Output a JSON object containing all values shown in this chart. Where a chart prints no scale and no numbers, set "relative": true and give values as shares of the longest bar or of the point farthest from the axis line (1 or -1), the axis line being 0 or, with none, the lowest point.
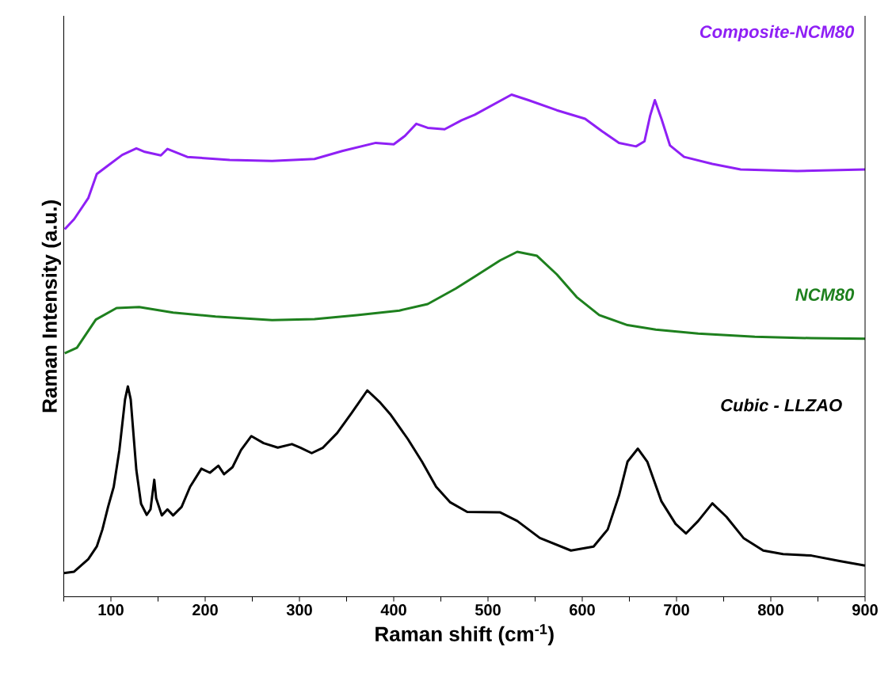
{
  "chart_data": {
    "type": "line",
    "relative": true,
    "xlabel": "Raman shift (cm$^{-1}$)",
    "ylabel": "Raman Intensity (a.u.)",
    "xlim": [
      50,
      900
    ],
    "xticks": [
      {
        "value": 50,
        "label": null
      },
      100,
      {
        "value": 150,
        "label": null
      },
      200,
      {
        "value": 250,
        "label": null
      },
      300,
      {
        "value": 350,
        "label": null
      },
      400,
      {
        "value": 450,
        "label": null
      },
      500,
      {
        "value": 550,
        "label": null
      },
      600,
      {
        "value": 650,
        "label": null
      },
      700,
      {
        "value": 750,
        "label": null
      },
      800,
      {
        "value": 850,
        "label": null
      },
      900
    ],
    "series": [
      {
        "name": "Composite-NCM80",
        "color": "#8f20f5",
        "x": [
          51,
          61,
          76,
          85,
          97,
          112,
          127,
          136,
          153,
          160,
          181,
          226,
          271,
          316,
          346,
          381,
          400,
          412,
          424,
          436,
          454,
          472,
          486,
          525,
          543,
          573,
          603,
          621,
          639,
          657,
          666,
          672,
          677,
          684,
          693,
          708,
          738,
          768,
          828,
          900
        ],
        "values": [
          0.732,
          0.752,
          0.794,
          0.842,
          0.859,
          0.88,
          0.893,
          0.886,
          0.879,
          0.892,
          0.876,
          0.87,
          0.868,
          0.872,
          0.888,
          0.904,
          0.901,
          0.918,
          0.942,
          0.934,
          0.931,
          0.949,
          0.96,
          1.0,
          0.989,
          0.969,
          0.952,
          0.927,
          0.904,
          0.897,
          0.907,
          0.958,
          0.989,
          0.952,
          0.899,
          0.876,
          0.862,
          0.851,
          0.848,
          0.851
        ]
      },
      {
        "name": "NCM80",
        "color": "#1e801e",
        "x": [
          51,
          64,
          84,
          106,
          130,
          166,
          211,
          271,
          316,
          361,
          406,
          436,
          466,
          487,
          513,
          531,
          552,
          573,
          594,
          618,
          648,
          678,
          723,
          783,
          843,
          900
        ],
        "values": [
          0.485,
          0.496,
          0.552,
          0.575,
          0.577,
          0.566,
          0.558,
          0.551,
          0.553,
          0.561,
          0.57,
          0.583,
          0.614,
          0.639,
          0.67,
          0.687,
          0.679,
          0.642,
          0.597,
          0.561,
          0.541,
          0.532,
          0.524,
          0.518,
          0.515,
          0.514
        ]
      },
      {
        "name": "Cubic - LLZAO",
        "color": "#000000",
        "x": [
          50,
          61,
          76,
          85,
          91,
          97,
          103,
          109,
          115,
          118,
          121,
          127,
          132,
          138,
          142,
          146,
          148,
          154,
          160,
          166,
          175,
          184,
          196,
          205,
          214,
          220,
          229,
          238,
          249,
          262,
          277,
          292,
          301,
          313,
          325,
          340,
          355,
          372,
          385,
          397,
          415,
          430,
          445,
          460,
          478,
          513,
          531,
          555,
          588,
          612,
          627,
          639,
          648,
          659,
          669,
          684,
          699,
          710,
          723,
          738,
          753,
          771,
          792,
          813,
          843,
          873,
          900
        ],
        "values": [
          0.047,
          0.05,
          0.075,
          0.1,
          0.134,
          0.179,
          0.219,
          0.292,
          0.393,
          0.419,
          0.393,
          0.252,
          0.185,
          0.163,
          0.174,
          0.233,
          0.196,
          0.162,
          0.174,
          0.162,
          0.179,
          0.219,
          0.255,
          0.247,
          0.261,
          0.244,
          0.258,
          0.292,
          0.32,
          0.306,
          0.297,
          0.304,
          0.297,
          0.286,
          0.297,
          0.326,
          0.365,
          0.411,
          0.388,
          0.362,
          0.314,
          0.269,
          0.219,
          0.188,
          0.169,
          0.168,
          0.151,
          0.117,
          0.092,
          0.1,
          0.134,
          0.202,
          0.269,
          0.295,
          0.269,
          0.19,
          0.145,
          0.126,
          0.151,
          0.186,
          0.159,
          0.117,
          0.092,
          0.085,
          0.082,
          0.071,
          0.062
        ]
      }
    ]
  }
}
